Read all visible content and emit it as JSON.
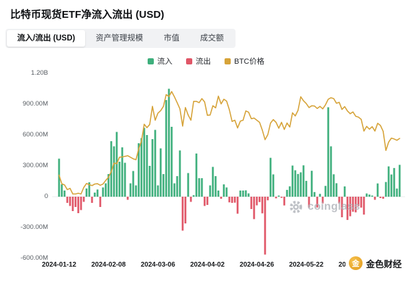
{
  "header": {
    "title": "比特币现货ETF净流入流出 (USD)"
  },
  "tabs": {
    "items": [
      {
        "label": "流入/流出 (USD)",
        "active": true
      },
      {
        "label": "资产管理规模",
        "active": false
      },
      {
        "label": "市值",
        "active": false
      },
      {
        "label": "成交额",
        "active": false
      }
    ]
  },
  "legend": {
    "inflow": "流入",
    "outflow": "流出",
    "price": "BTC价格"
  },
  "watermarks": {
    "coinglass": "coinglass",
    "jinse": "金色财经",
    "jinse_icon_char": "金"
  },
  "chart_data": {
    "type": "bar",
    "subtype": "bar+line",
    "title": "比特币现货ETF净流入流出 (USD)",
    "ylabel": "净流入流出 (USD)",
    "y_ticks": [
      "1.20B",
      "900.00M",
      "600.00M",
      "300.00M",
      "0",
      "-300.00M",
      "-600.00M"
    ],
    "y_tick_values_m": [
      1200,
      900,
      600,
      300,
      0,
      -300,
      -600
    ],
    "ylim_m": [
      -600,
      1200
    ],
    "grid": false,
    "legend_position": "top-center",
    "x_labels": [
      "2024-01-12",
      "2024-02-08",
      "2024-03-06",
      "2024-04-02",
      "2024-04-26",
      "2024-05-22",
      "2024-06-18"
    ],
    "x_label_indices": [
      0,
      18,
      36,
      54,
      72,
      90,
      108
    ],
    "dates": [
      "2024-01-12",
      "2024-01-16",
      "2024-01-17",
      "2024-01-18",
      "2024-01-19",
      "2024-01-22",
      "2024-01-23",
      "2024-01-24",
      "2024-01-25",
      "2024-01-26",
      "2024-01-29",
      "2024-01-30",
      "2024-01-31",
      "2024-02-01",
      "2024-02-02",
      "2024-02-05",
      "2024-02-06",
      "2024-02-07",
      "2024-02-08",
      "2024-02-09",
      "2024-02-12",
      "2024-02-13",
      "2024-02-14",
      "2024-02-15",
      "2024-02-16",
      "2024-02-20",
      "2024-02-21",
      "2024-02-22",
      "2024-02-23",
      "2024-02-26",
      "2024-02-27",
      "2024-02-28",
      "2024-02-29",
      "2024-03-01",
      "2024-03-04",
      "2024-03-05",
      "2024-03-06",
      "2024-03-07",
      "2024-03-08",
      "2024-03-11",
      "2024-03-12",
      "2024-03-13",
      "2024-03-14",
      "2024-03-15",
      "2024-03-18",
      "2024-03-19",
      "2024-03-20",
      "2024-03-21",
      "2024-03-22",
      "2024-03-25",
      "2024-03-26",
      "2024-03-27",
      "2024-03-28",
      "2024-04-01",
      "2024-04-02",
      "2024-04-03",
      "2024-04-04",
      "2024-04-05",
      "2024-04-08",
      "2024-04-09",
      "2024-04-10",
      "2024-04-11",
      "2024-04-12",
      "2024-04-15",
      "2024-04-16",
      "2024-04-17",
      "2024-04-18",
      "2024-04-19",
      "2024-04-22",
      "2024-04-23",
      "2024-04-24",
      "2024-04-25",
      "2024-04-26",
      "2024-04-29",
      "2024-04-30",
      "2024-05-01",
      "2024-05-02",
      "2024-05-03",
      "2024-05-06",
      "2024-05-07",
      "2024-05-08",
      "2024-05-09",
      "2024-05-10",
      "2024-05-13",
      "2024-05-14",
      "2024-05-15",
      "2024-05-16",
      "2024-05-17",
      "2024-05-20",
      "2024-05-21",
      "2024-05-22",
      "2024-05-23",
      "2024-05-24",
      "2024-05-28",
      "2024-05-29",
      "2024-05-30",
      "2024-05-31",
      "2024-06-03",
      "2024-06-04",
      "2024-06-05",
      "2024-06-06",
      "2024-06-07",
      "2024-06-10",
      "2024-06-11",
      "2024-06-12",
      "2024-06-13",
      "2024-06-14",
      "2024-06-17",
      "2024-06-18",
      "2024-06-20",
      "2024-06-21",
      "2024-06-24",
      "2024-06-25",
      "2024-06-26",
      "2024-06-27",
      "2024-06-28",
      "2024-07-01",
      "2024-07-02",
      "2024-07-03",
      "2024-07-05",
      "2024-07-08",
      "2024-07-09",
      "2024-07-10",
      "2024-07-11",
      "2024-07-12"
    ],
    "series": [
      {
        "name": "净流入/流出",
        "type": "bar",
        "unit": "million USD",
        "values": [
          370,
          120,
          60,
          -60,
          -90,
          -140,
          -100,
          -160,
          -130,
          -50,
          80,
          140,
          -60,
          40,
          70,
          -100,
          90,
          130,
          220,
          540,
          490,
          630,
          340,
          480,
          330,
          -30,
          130,
          250,
          110,
          520,
          570,
          670,
          600,
          300,
          560,
          650,
          110,
          470,
          220,
          940,
          1050,
          680,
          130,
          200,
          450,
          -330,
          -260,
          230,
          -50,
          15,
          420,
          180,
          180,
          -90,
          -80,
          110,
          290,
          200,
          60,
          -20,
          120,
          90,
          -55,
          -60,
          -58,
          -165,
          60,
          60,
          62,
          32,
          -120,
          -218,
          -84,
          -52,
          -162,
          -563,
          -35,
          378,
          217,
          -16,
          11,
          -11,
          -85,
          66,
          101,
          303,
          257,
          221,
          237,
          305,
          154,
          -105,
          252,
          45,
          -105,
          28,
          -65,
          105,
          870,
          490,
          218,
          131,
          -65,
          -200,
          100,
          -226,
          -190,
          -146,
          -152,
          -92,
          -106,
          -174,
          31,
          21,
          11,
          -30,
          129,
          -13,
          -20,
          143,
          295,
          216,
          279,
          79,
          310
        ]
      },
      {
        "name": "BTC价格",
        "type": "line",
        "unit": "thousand USD",
        "values": [
          46.0,
          43.2,
          42.8,
          41.3,
          41.7,
          39.9,
          39.9,
          40.1,
          39.9,
          42.0,
          43.3,
          42.9,
          42.6,
          43.1,
          43.2,
          42.7,
          43.1,
          44.3,
          45.3,
          47.1,
          49.9,
          49.7,
          51.8,
          51.9,
          52.1,
          52.3,
          51.8,
          51.3,
          51.0,
          54.5,
          57.0,
          62.5,
          61.4,
          62.4,
          68.3,
          63.8,
          66.1,
          66.9,
          68.3,
          72.1,
          71.5,
          73.1,
          71.4,
          69.5,
          67.5,
          61.9,
          67.9,
          65.5,
          63.8,
          69.9,
          69.9,
          69.5,
          70.8,
          69.7,
          65.4,
          65.5,
          68.5,
          67.8,
          71.6,
          69.1,
          70.6,
          70.0,
          67.2,
          63.4,
          63.8,
          61.3,
          63.5,
          63.8,
          66.8,
          66.4,
          64.3,
          64.5,
          63.8,
          63.1,
          60.6,
          57.5,
          59.1,
          62.9,
          64.0,
          63.1,
          61.2,
          63.1,
          60.8,
          62.9,
          61.6,
          66.2,
          65.2,
          67.0,
          71.4,
          70.1,
          69.2,
          67.9,
          68.5,
          68.4,
          67.6,
          68.3,
          67.5,
          68.8,
          70.6,
          71.1,
          70.8,
          69.3,
          69.6,
          67.3,
          68.2,
          66.8,
          65.9,
          66.5,
          65.1,
          64.8,
          64.1,
          60.3,
          61.8,
          60.9,
          61.7,
          60.3,
          62.8,
          62.1,
          60.2,
          54.0,
          56.7,
          58.0,
          57.7,
          57.3,
          57.9
        ]
      }
    ],
    "price_axis_map": {
      "price_k": [
        39,
        79
      ],
      "value_m": [
        0,
        1200
      ]
    },
    "colors": {
      "inflow": "#3eaf7c",
      "outflow": "#e05667",
      "price": "#d6a339"
    }
  }
}
